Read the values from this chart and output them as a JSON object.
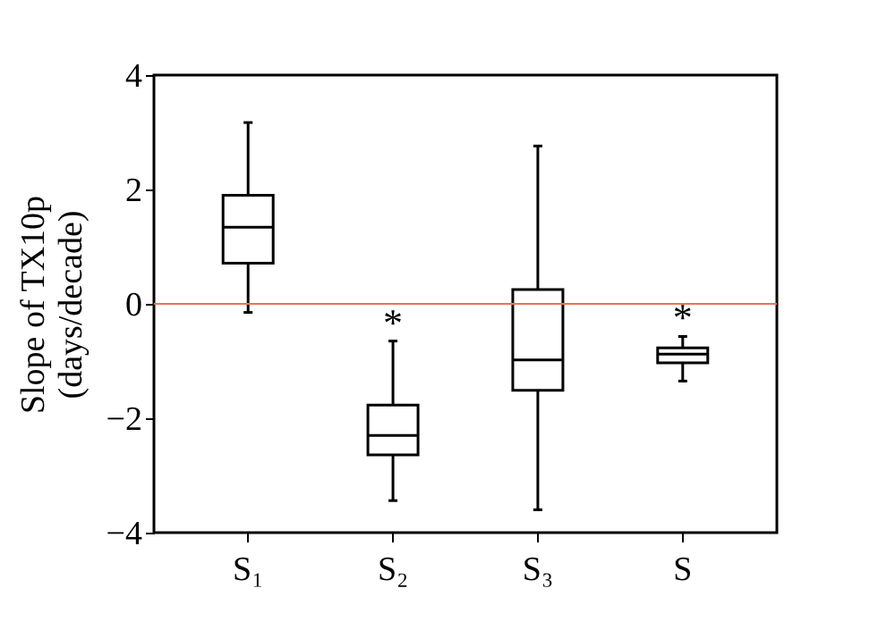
{
  "chart_data": {
    "type": "box",
    "ylabel": "Slope of TX10p\n(days/decade)",
    "categories": [
      "S₁",
      "S₂",
      "S₃",
      "S"
    ],
    "boxes": [
      {
        "low": -0.15,
        "q1": 0.71,
        "median": 1.34,
        "q3": 1.9,
        "high": 3.17
      },
      {
        "low": -3.44,
        "q1": -2.64,
        "median": -2.3,
        "q3": -1.77,
        "high": -0.65
      },
      {
        "low": -3.6,
        "q1": -1.51,
        "median": -0.98,
        "q3": 0.25,
        "high": 2.76
      },
      {
        "low": -1.35,
        "q1": -1.03,
        "median": -0.88,
        "q3": -0.77,
        "high": -0.57
      }
    ],
    "ylim": [
      -4,
      4
    ],
    "yticks": [
      -4,
      -2,
      0,
      2,
      4
    ],
    "ref_lines": [
      {
        "axis": "y",
        "value": 0,
        "color": "#e8735a"
      }
    ],
    "annotations": [
      "*",
      "*"
    ]
  }
}
